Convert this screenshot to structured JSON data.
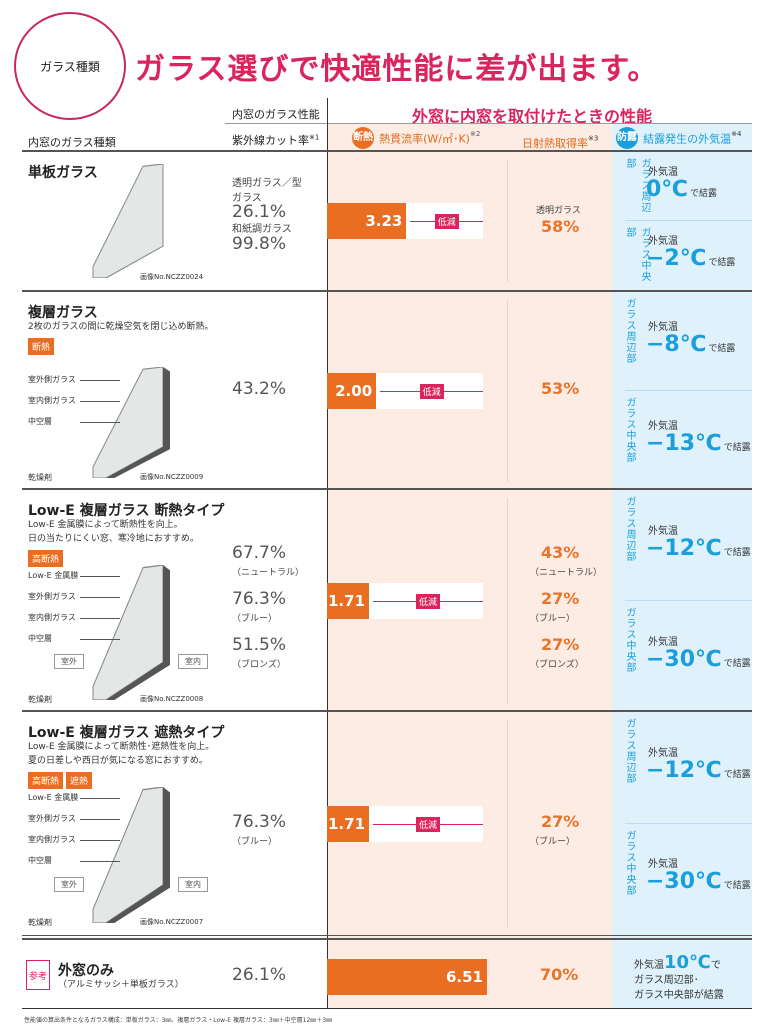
{
  "header": {
    "badge": "ガラス種類",
    "title": "ガラス選びで快適性能に差が出ます。"
  },
  "columns": {
    "glass_type": "内窓のガラス種類",
    "uv_group": "内窓のガラス性能",
    "uv": "紫外線カット率",
    "uv_note": "※1",
    "perf_group": "外窓に内窓を取付けたときの性能",
    "heat_badge": "断熱",
    "heat": "熱貫流率(W/㎡･K)",
    "heat_note": "※2",
    "solar": "日射熱取得率",
    "solar_note": "※3",
    "cond_badge": "防露",
    "cond": "結露発生の外気温",
    "cond_note": "※4"
  },
  "common": {
    "reduce": "低減",
    "edge": "ガラス周辺部",
    "center": "ガラス中央部",
    "outside_temp": "外気温",
    "condense": "で結露",
    "outdoor": "室外",
    "indoor": "室内"
  },
  "colors": {
    "accent": "#d9245e",
    "heat": "#ea6e22",
    "cond": "#1a9fdc"
  },
  "rows": [
    {
      "title": "単板ガラス",
      "desc": [],
      "tags": [],
      "image_no": "画像No.NCZZ0024",
      "labels": [],
      "uv": [
        {
          "label": "透明ガラス／型ガラス",
          "value": "26.1%"
        },
        {
          "label": "和紙調ガラス",
          "value": "99.8%"
        }
      ],
      "u_value": 3.23,
      "u_text": "3.23",
      "solar": [
        {
          "label": "透明ガラス",
          "value": "58%",
          "pre": true
        }
      ],
      "edge": "0℃",
      "center": "−2℃"
    },
    {
      "title": "複層ガラス",
      "desc": [
        "2枚のガラスの間に乾燥空気を閉じ込め断熱。"
      ],
      "tags": [
        "断熱"
      ],
      "image_no": "画像No.NCZZ0009",
      "labels": [
        "室外側ガラス",
        "室内側ガラス",
        "中空層",
        "乾燥剤"
      ],
      "uv": [
        {
          "value": "43.2%"
        }
      ],
      "u_value": 2.0,
      "u_text": "2.00",
      "solar": [
        {
          "value": "53%"
        }
      ],
      "edge": "−8℃",
      "center": "−13℃"
    },
    {
      "title": "Low-E 複層ガラス 断熱タイプ",
      "desc": [
        "Low-E 金属膜によって断熱性を向上。",
        "日の当たりにくい窓、寒冷地におすすめ。"
      ],
      "tags": [
        "高断熱"
      ],
      "image_no": "画像No.NCZZ0008",
      "labels": [
        "Low-E 金属膜",
        "室外側ガラス",
        "室内側ガラス",
        "中空層",
        "乾燥剤"
      ],
      "rooms": true,
      "uv": [
        {
          "value": "67.7%",
          "sub": "（ニュートラル）"
        },
        {
          "value": "76.3%",
          "sub": "（ブルー）"
        },
        {
          "value": "51.5%",
          "sub": "（ブロンズ）"
        }
      ],
      "u_value": 1.71,
      "u_text": "1.71",
      "solar": [
        {
          "value": "43%",
          "sub": "（ニュートラル）"
        },
        {
          "value": "27%",
          "sub": "（ブルー）"
        },
        {
          "value": "27%",
          "sub": "（ブロンズ）"
        }
      ],
      "edge": "−12℃",
      "center": "−30℃"
    },
    {
      "title": "Low-E 複層ガラス 遮熱タイプ",
      "desc": [
        "Low-E 金属膜によって断熱性･遮熱性を向上。",
        "夏の日差しや西日が気になる窓におすすめ。"
      ],
      "tags": [
        "高断熱",
        "遮熱"
      ],
      "image_no": "画像No.NCZZ0007",
      "labels": [
        "Low-E 金属膜",
        "室外側ガラス",
        "室内側ガラス",
        "中空層",
        "乾燥剤"
      ],
      "rooms": true,
      "uv": [
        {
          "value": "76.3%",
          "sub": "（ブルー）"
        }
      ],
      "u_value": 1.71,
      "u_text": "1.71",
      "solar": [
        {
          "value": "27%",
          "sub": "（ブルー）"
        }
      ],
      "edge": "−12℃",
      "center": "−30℃"
    }
  ],
  "reference": {
    "badge": "参考",
    "title": "外窓のみ",
    "sub": "（アルミサッシ＋単板ガラス）",
    "uv": "26.1%",
    "u_value": 6.51,
    "u_text": "6.51",
    "solar": "70%",
    "cond_pre": "外気温",
    "cond_temp": "10℃",
    "cond_post": "で",
    "cond_line2": "ガラス周辺部･",
    "cond_line3": "ガラス中央部が結露"
  },
  "footer": "性能値の算出条件となるガラス構成：単板ガラス：3㎜、複層ガラス・Low-E 複層ガラス：3㎜＋中空層12㎜＋3㎜"
}
